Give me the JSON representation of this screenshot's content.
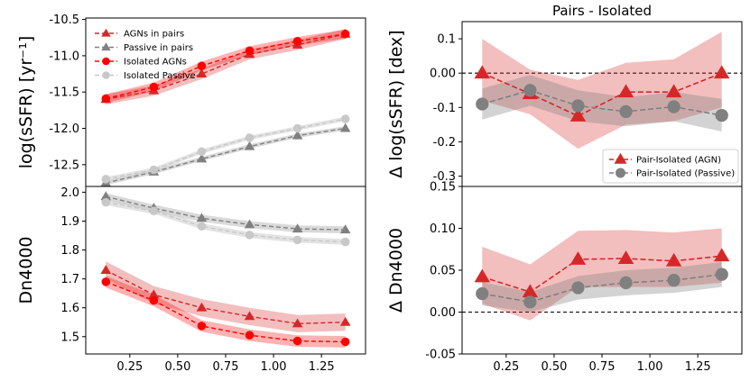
{
  "chart_data": [
    {
      "type": "line",
      "panel": "top-left",
      "ylabel": "log(sSFR) [yr⁻¹]",
      "ylim": [
        -12.8,
        -10.48
      ],
      "yticks": [
        -12.5,
        -12.0,
        -11.5,
        -11.0,
        -10.5
      ],
      "ytick_labels": [
        "-12.5",
        "-12.0",
        "-11.5",
        "-11.0",
        "-10.5"
      ],
      "x": [
        0.125,
        0.375,
        0.625,
        0.875,
        1.125,
        1.375
      ],
      "legend_position": "top-left",
      "series": [
        {
          "name": "AGNs in pairs",
          "color": "#d62728",
          "marker": "triangle",
          "values": [
            -11.6,
            -11.48,
            -11.25,
            -10.98,
            -10.85,
            -10.7
          ],
          "band": 0.07
        },
        {
          "name": "Passive in pairs",
          "color": "#808080",
          "marker": "triangle",
          "values": [
            -12.75,
            -12.6,
            -12.42,
            -12.25,
            -12.1,
            -12.0
          ],
          "band": 0.03
        },
        {
          "name": "Isolated AGNs",
          "color": "#ff0000",
          "marker": "circle",
          "values": [
            -11.59,
            -11.43,
            -11.14,
            -10.93,
            -10.8,
            -10.7
          ],
          "band": 0.06
        },
        {
          "name": "Isolated Passive",
          "color": "#c8c8c8",
          "marker": "circle",
          "values": [
            -12.7,
            -12.57,
            -12.32,
            -12.13,
            -12.0,
            -11.87
          ],
          "band": 0.03
        }
      ]
    },
    {
      "type": "line",
      "panel": "bottom-left",
      "ylabel": "Dn4000",
      "ylim": [
        1.44,
        2.02
      ],
      "yticks": [
        1.5,
        1.6,
        1.7,
        1.8,
        1.9,
        2.0
      ],
      "ytick_labels": [
        "1.5",
        "1.6",
        "1.7",
        "1.8",
        "1.9",
        "2.0"
      ],
      "xticks": [
        0.25,
        0.5,
        0.75,
        1.0,
        1.25
      ],
      "xtick_labels": [
        "0.25",
        "0.50",
        "0.75",
        "1.00",
        "1.25"
      ],
      "x": [
        0.125,
        0.375,
        0.625,
        0.875,
        1.125,
        1.375
      ],
      "series": [
        {
          "color": "#d62728",
          "marker": "triangle",
          "values": [
            1.73,
            1.645,
            1.6,
            1.57,
            1.545,
            1.55
          ],
          "band": 0.03
        },
        {
          "color": "#808080",
          "marker": "triangle",
          "values": [
            1.985,
            1.945,
            1.91,
            1.888,
            1.873,
            1.87
          ],
          "band": 0.012
        },
        {
          "color": "#ff0000",
          "marker": "circle",
          "values": [
            1.69,
            1.625,
            1.537,
            1.505,
            1.485,
            1.482
          ],
          "band": 0.02
        },
        {
          "color": "#c8c8c8",
          "marker": "circle",
          "values": [
            1.965,
            1.935,
            1.882,
            1.852,
            1.835,
            1.828
          ],
          "band": 0.01
        }
      ]
    },
    {
      "type": "line",
      "panel": "top-right",
      "title": "Pairs - Isolated",
      "ylabel": "Δ log(sSFR) [dex]",
      "ylim": [
        -0.33,
        0.15
      ],
      "yticks": [
        -0.3,
        -0.2,
        -0.1,
        0.0,
        0.1
      ],
      "ytick_labels": [
        "-0.3",
        "-0.2",
        "-0.1",
        "0.00",
        "0.1"
      ],
      "x": [
        0.125,
        0.375,
        0.625,
        0.875,
        1.125,
        1.375
      ],
      "legend_position": "lower-right",
      "series": [
        {
          "name": "Pair-Isolated (AGN)",
          "color": "#d62728",
          "marker": "triangle",
          "values": [
            0.0,
            -0.06,
            -0.125,
            -0.055,
            -0.055,
            0.0
          ],
          "lower": [
            -0.08,
            -0.12,
            -0.22,
            -0.15,
            -0.14,
            -0.1
          ],
          "upper": [
            0.1,
            0.01,
            -0.02,
            0.03,
            0.04,
            0.12
          ]
        },
        {
          "name": "Pair-Isolated (Passive)",
          "color": "#808080",
          "marker": "circle",
          "values": [
            -0.09,
            -0.05,
            -0.095,
            -0.112,
            -0.098,
            -0.123
          ],
          "lower": [
            -0.135,
            -0.095,
            -0.14,
            -0.155,
            -0.14,
            -0.17
          ],
          "upper": [
            -0.045,
            -0.005,
            -0.05,
            -0.07,
            -0.055,
            -0.075
          ]
        }
      ]
    },
    {
      "type": "line",
      "panel": "bottom-right",
      "ylabel": "Δ Dn4000",
      "ylim": [
        -0.05,
        0.15
      ],
      "yticks": [
        -0.05,
        0.0,
        0.05,
        0.1,
        0.15
      ],
      "ytick_labels": [
        "-0.05",
        "0.00",
        "0.05",
        "0.10",
        "0.15"
      ],
      "xticks": [
        0.25,
        0.5,
        0.75,
        1.0,
        1.25
      ],
      "xtick_labels": [
        "0.25",
        "0.50",
        "0.75",
        "1.00",
        "1.25"
      ],
      "x": [
        0.125,
        0.375,
        0.625,
        0.875,
        1.125,
        1.375
      ],
      "series": [
        {
          "color": "#d62728",
          "marker": "triangle",
          "values": [
            0.042,
            0.024,
            0.063,
            0.064,
            0.061,
            0.067
          ],
          "lower": [
            0.01,
            -0.01,
            0.03,
            0.03,
            0.03,
            0.035
          ],
          "upper": [
            0.078,
            0.057,
            0.097,
            0.098,
            0.095,
            0.1
          ]
        },
        {
          "color": "#808080",
          "marker": "circle",
          "values": [
            0.022,
            0.012,
            0.029,
            0.035,
            0.038,
            0.045
          ],
          "lower": [
            0.008,
            0.0,
            0.015,
            0.02,
            0.023,
            0.03
          ],
          "upper": [
            0.036,
            0.024,
            0.043,
            0.05,
            0.053,
            0.06
          ]
        }
      ]
    }
  ]
}
